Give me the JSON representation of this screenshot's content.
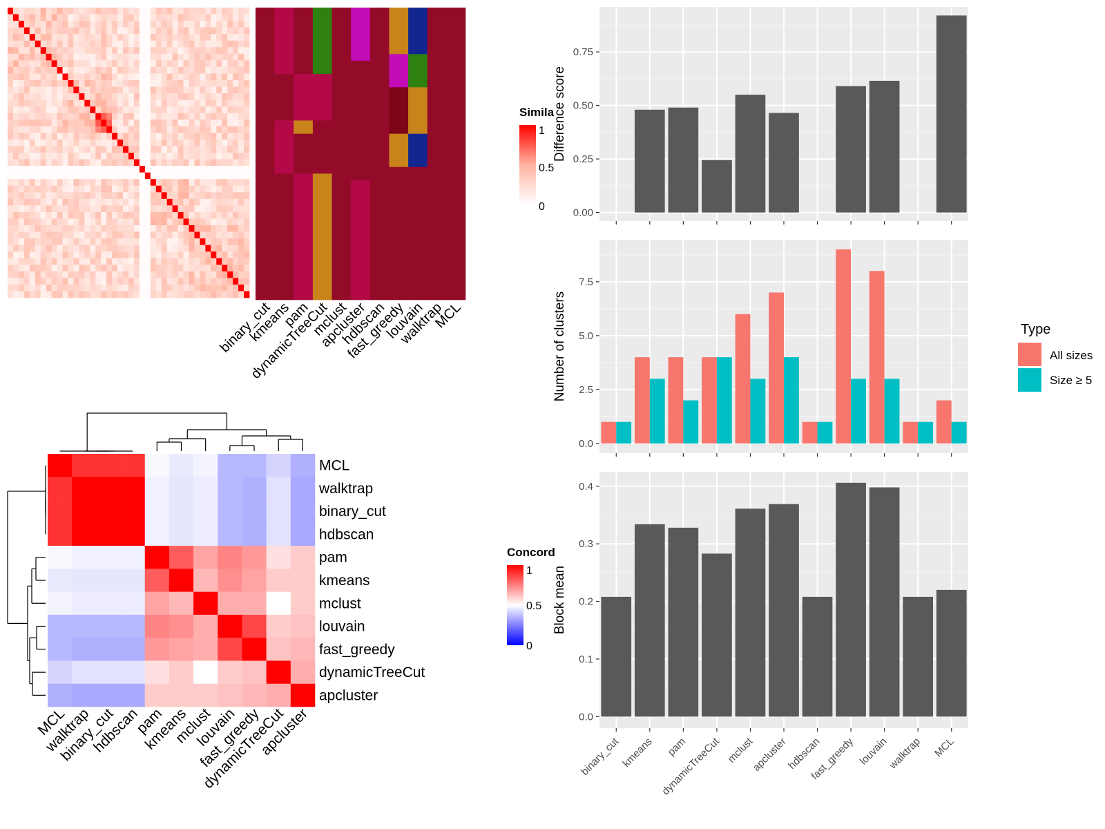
{
  "colors": {
    "bar_dark": "#595959",
    "panel_bg": "#ebebeb",
    "grid_major": "#ffffff",
    "all_sizes": "#F8766D",
    "size_ge5": "#00BFC4",
    "heat_high": "#ff0000",
    "heat_mid": "#ffffff",
    "heat_low": "#0000ff",
    "class_colors": [
      "#940A29",
      "#B30A47",
      "#2E8010",
      "#C8841A",
      "#C20CB6",
      "#11268F",
      "#7D0515",
      "#1A0A80"
    ]
  },
  "similarity_legend": {
    "title": "Simila",
    "ticks": [
      "1",
      "0.5",
      "0"
    ]
  },
  "concordance_legend": {
    "title": "Concord",
    "ticks": [
      "1",
      "0.5",
      "0"
    ]
  },
  "methods_ordered": [
    "binary_cut",
    "kmeans",
    "pam",
    "dynamicTreeCut",
    "mclust",
    "apcluster",
    "hdbscan",
    "fast_greedy",
    "louvain",
    "walktrap",
    "MCL"
  ],
  "class_matrix": {
    "row_count": 44,
    "note_columns": "one column per method in methods_ordered",
    "runs": [
      [
        [
          0,
          44
        ]
      ],
      [
        [
          0,
          10,
          1
        ],
        [
          10,
          17,
          0
        ],
        [
          17,
          25,
          1
        ],
        [
          25,
          29,
          0
        ],
        [
          29,
          44,
          0
        ]
      ],
      [
        [
          0,
          10,
          0
        ],
        [
          10,
          17,
          1
        ],
        [
          17,
          19,
          3
        ],
        [
          19,
          25,
          0
        ],
        [
          25,
          44,
          1
        ]
      ],
      [
        [
          0,
          10,
          2
        ],
        [
          10,
          17,
          1
        ],
        [
          17,
          19,
          0
        ],
        [
          19,
          25,
          0
        ],
        [
          25,
          44,
          3
        ]
      ],
      [
        [
          0,
          44,
          0
        ]
      ],
      [
        [
          0,
          8,
          4
        ],
        [
          8,
          19,
          0
        ],
        [
          19,
          26,
          0
        ],
        [
          26,
          44,
          1
        ]
      ],
      [
        [
          0,
          44,
          0
        ]
      ],
      [
        [
          0,
          7,
          3
        ],
        [
          7,
          12,
          4
        ],
        [
          12,
          19,
          6
        ],
        [
          19,
          24,
          3
        ],
        [
          24,
          44,
          0
        ]
      ],
      [
        [
          0,
          7,
          5
        ],
        [
          7,
          12,
          2
        ],
        [
          12,
          19,
          3
        ],
        [
          19,
          24,
          5
        ],
        [
          24,
          44,
          0
        ]
      ],
      [
        [
          0,
          44,
          0
        ]
      ],
      [
        [
          0,
          44,
          0
        ]
      ]
    ]
  },
  "concordance": {
    "row_labels": [
      "MCL",
      "walktrap",
      "binary_cut",
      "hdbscan",
      "pam",
      "kmeans",
      "mclust",
      "louvain",
      "fast_greedy",
      "dynamicTreeCut",
      "apcluster"
    ],
    "col_labels": [
      "MCL",
      "walktrap",
      "binary_cut",
      "hdbscan",
      "pam",
      "kmeans",
      "mclust",
      "louvain",
      "fast_greedy",
      "dynamicTreeCut",
      "apcluster"
    ],
    "values": [
      [
        1.0,
        0.9,
        0.9,
        0.9,
        0.48,
        0.44,
        0.47,
        0.3,
        0.3,
        0.38,
        0.28
      ],
      [
        0.9,
        1.0,
        1.0,
        1.0,
        0.46,
        0.43,
        0.45,
        0.3,
        0.28,
        0.42,
        0.26
      ],
      [
        0.9,
        1.0,
        1.0,
        1.0,
        0.46,
        0.43,
        0.45,
        0.3,
        0.28,
        0.42,
        0.26
      ],
      [
        0.9,
        1.0,
        1.0,
        1.0,
        0.46,
        0.43,
        0.45,
        0.3,
        0.28,
        0.42,
        0.26
      ],
      [
        0.48,
        0.46,
        0.46,
        0.46,
        1.0,
        0.82,
        0.68,
        0.74,
        0.7,
        0.56,
        0.6
      ],
      [
        0.44,
        0.43,
        0.43,
        0.43,
        0.82,
        1.0,
        0.64,
        0.72,
        0.68,
        0.6,
        0.6
      ],
      [
        0.47,
        0.45,
        0.45,
        0.45,
        0.68,
        0.64,
        1.0,
        0.66,
        0.66,
        0.5,
        0.6
      ],
      [
        0.3,
        0.3,
        0.3,
        0.3,
        0.74,
        0.72,
        0.66,
        1.0,
        0.86,
        0.6,
        0.62
      ],
      [
        0.3,
        0.28,
        0.28,
        0.28,
        0.7,
        0.68,
        0.66,
        0.86,
        1.0,
        0.62,
        0.64
      ],
      [
        0.38,
        0.42,
        0.42,
        0.42,
        0.56,
        0.6,
        0.5,
        0.6,
        0.62,
        1.0,
        0.66
      ],
      [
        0.28,
        0.26,
        0.26,
        0.26,
        0.6,
        0.6,
        0.6,
        0.62,
        0.64,
        0.66,
        1.0
      ]
    ]
  },
  "chart_data": [
    {
      "type": "bar",
      "categories": [
        "binary_cut",
        "kmeans",
        "pam",
        "dynamicTreeCut",
        "mclust",
        "apcluster",
        "hdbscan",
        "fast_greedy",
        "louvain",
        "walktrap",
        "MCL"
      ],
      "values": [
        0,
        0.48,
        0.49,
        0.245,
        0.55,
        0.465,
        0,
        0.59,
        0.615,
        0,
        0.92
      ],
      "title": "",
      "xlabel": "",
      "ylabel": "Difference score",
      "ylim": [
        -0.04,
        0.96
      ],
      "yticks": [
        "0.00",
        "0.25",
        "0.50",
        "0.75"
      ],
      "grid": true
    },
    {
      "type": "bar",
      "categories": [
        "binary_cut",
        "kmeans",
        "pam",
        "dynamicTreeCut",
        "mclust",
        "apcluster",
        "hdbscan",
        "fast_greedy",
        "louvain",
        "walktrap",
        "MCL"
      ],
      "series": [
        {
          "name": "All sizes",
          "values": [
            1,
            4,
            4,
            4,
            6,
            7,
            1,
            9,
            8,
            1,
            2
          ]
        },
        {
          "name": "Size ≥ 5",
          "values": [
            1,
            3,
            2,
            4,
            3,
            4,
            1,
            3,
            3,
            1,
            1
          ]
        }
      ],
      "title": "",
      "xlabel": "",
      "ylabel": "Number of clusters",
      "ylim": [
        -0.45,
        9.45
      ],
      "yticks": [
        "0.0",
        "2.5",
        "5.0",
        "7.5"
      ],
      "legend": {
        "title": "Type",
        "placement": "right"
      },
      "grid": true
    },
    {
      "type": "bar",
      "categories": [
        "binary_cut",
        "kmeans",
        "pam",
        "dynamicTreeCut",
        "mclust",
        "apcluster",
        "hdbscan",
        "fast_greedy",
        "louvain",
        "walktrap",
        "MCL"
      ],
      "values": [
        0.208,
        0.334,
        0.328,
        0.283,
        0.361,
        0.369,
        0.208,
        0.406,
        0.398,
        0.208,
        0.22
      ],
      "title": "",
      "xlabel": "",
      "ylabel": "Block mean",
      "ylim": [
        -0.02,
        0.425
      ],
      "yticks": [
        "0.0",
        "0.1",
        "0.2",
        "0.3",
        "0.4"
      ],
      "grid": true
    }
  ]
}
